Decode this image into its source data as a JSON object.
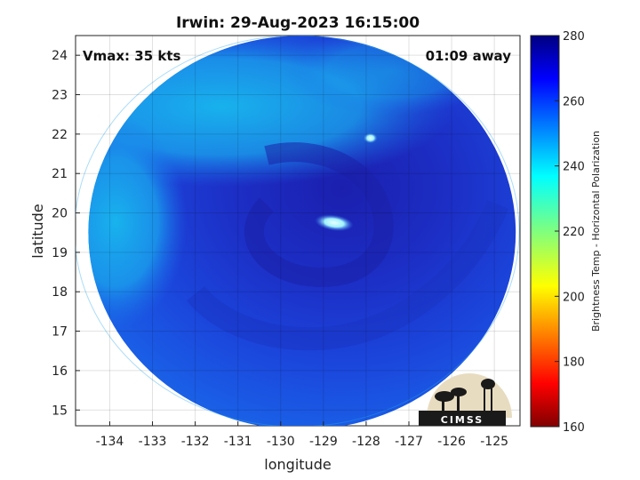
{
  "chart_data": {
    "type": "heatmap",
    "title": "Irwin: 29-Aug-2023 16:15:00",
    "annotations": {
      "vmax": "Vmax: 35 kts",
      "time_away": "01:09 away"
    },
    "xlabel": "longitude",
    "ylabel": "latitude",
    "xlim": [
      -134.8,
      -124.4
    ],
    "ylim": [
      14.6,
      24.5
    ],
    "x_ticks": [
      -134,
      -133,
      -132,
      -131,
      -130,
      -129,
      -128,
      -127,
      -126,
      -125
    ],
    "y_ticks": [
      15,
      16,
      17,
      18,
      19,
      20,
      21,
      22,
      23,
      24
    ],
    "grid": true,
    "colorbar": {
      "label": "Brightness Temp - Horizontal Polarization",
      "range": [
        160,
        280
      ],
      "ticks": [
        160,
        180,
        200,
        220,
        240,
        260,
        280
      ],
      "colormap": "jet"
    },
    "swath": {
      "center_lon": -129.5,
      "center_lat": 19.5,
      "radius_deg": 5.0
    },
    "features": [
      {
        "lon": -128.75,
        "lat": 19.75,
        "value": 238
      },
      {
        "lon": -127.9,
        "lat": 21.9,
        "value": 245
      }
    ],
    "logo": "CIMSS"
  },
  "colors": {
    "cold_core": "#1e1fb4",
    "mid_blue": "#1a4be0",
    "outer_cyan": "#16b3ee",
    "warm_spot": "#bff7ff"
  }
}
